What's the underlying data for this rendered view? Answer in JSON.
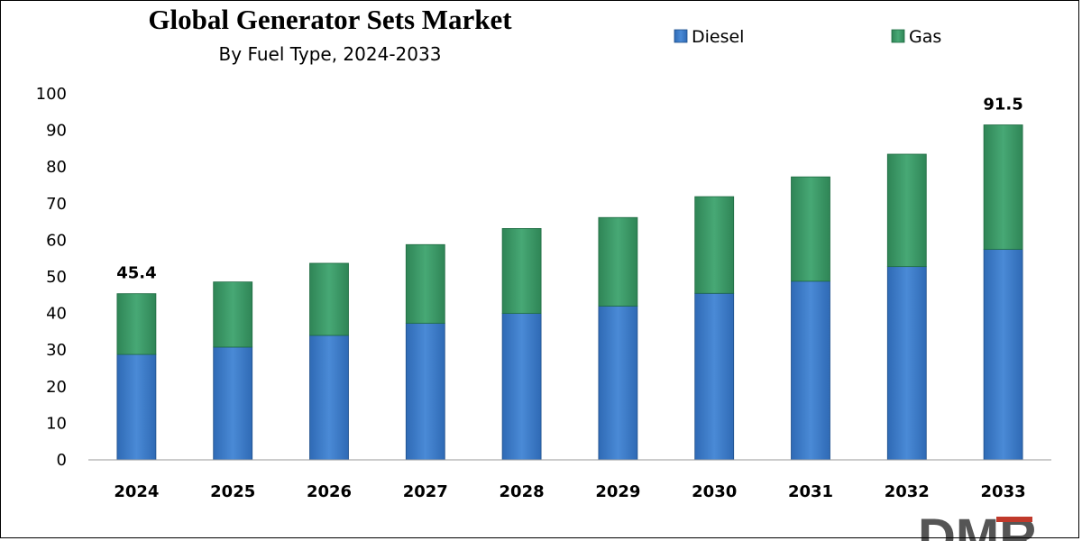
{
  "chart_data": {
    "type": "bar",
    "stacked": true,
    "title": "Global Generator Sets Market",
    "subtitle": "By Fuel Type, 2024-2033",
    "xlabel": "",
    "ylabel": "",
    "categories": [
      "2024",
      "2025",
      "2026",
      "2027",
      "2028",
      "2029",
      "2030",
      "2031",
      "2032",
      "2033"
    ],
    "series": [
      {
        "name": "Diesel",
        "color": "#3a7cc8",
        "values": [
          28.8,
          30.8,
          34.0,
          37.3,
          40.0,
          42.0,
          45.5,
          48.8,
          52.8,
          57.5
        ]
      },
      {
        "name": "Gas",
        "color": "#3d9a66",
        "values": [
          16.6,
          17.8,
          19.7,
          21.5,
          23.2,
          24.2,
          26.4,
          28.5,
          30.7,
          34.0
        ]
      }
    ],
    "ylim": [
      0,
      100
    ],
    "yticks": [
      0,
      10,
      20,
      30,
      40,
      50,
      60,
      70,
      80,
      90,
      100
    ],
    "grid": false,
    "legend_position": "top-right",
    "annotations": [
      {
        "category": "2024",
        "text": "45.4"
      },
      {
        "category": "2033",
        "text": "91.5"
      }
    ]
  },
  "logo": {
    "text": "DMR",
    "color": "#555555",
    "accent": "#c0392b"
  }
}
